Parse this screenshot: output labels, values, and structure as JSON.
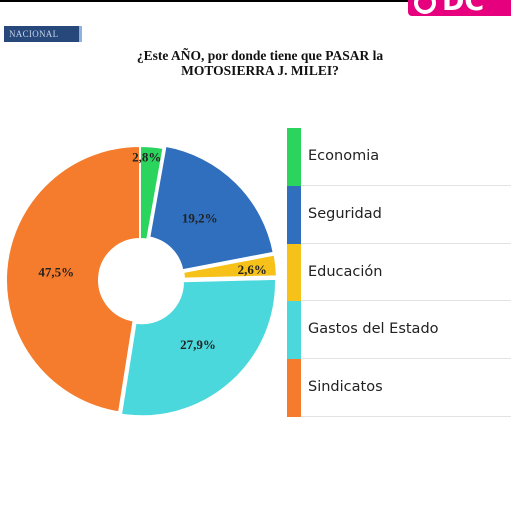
{
  "header": {
    "badge": "NACIONAL",
    "brand": "DC",
    "brand_color": "#e6007e"
  },
  "chart_data": {
    "type": "pie",
    "donut": true,
    "title": [
      "¿Este AÑO, por donde tiene que PASAR la",
      "MOTOSIERRA J. MILEI?"
    ],
    "legend_position": "right",
    "slices": [
      {
        "label": "Economia",
        "value": 2.8,
        "display": "2,8%",
        "color": "#2bd45c"
      },
      {
        "label": "Seguridad",
        "value": 19.2,
        "display": "19,2%",
        "color": "#2f6fbd"
      },
      {
        "label": "Educación",
        "value": 2.6,
        "display": "2,6%",
        "color": "#f6c21a"
      },
      {
        "label": "Gastos del Estado",
        "value": 27.9,
        "display": "27,9%",
        "color": "#4ad8dc"
      },
      {
        "label": "Sindicatos",
        "value": 47.5,
        "display": "47,5%",
        "color": "#f47c2c"
      }
    ]
  }
}
